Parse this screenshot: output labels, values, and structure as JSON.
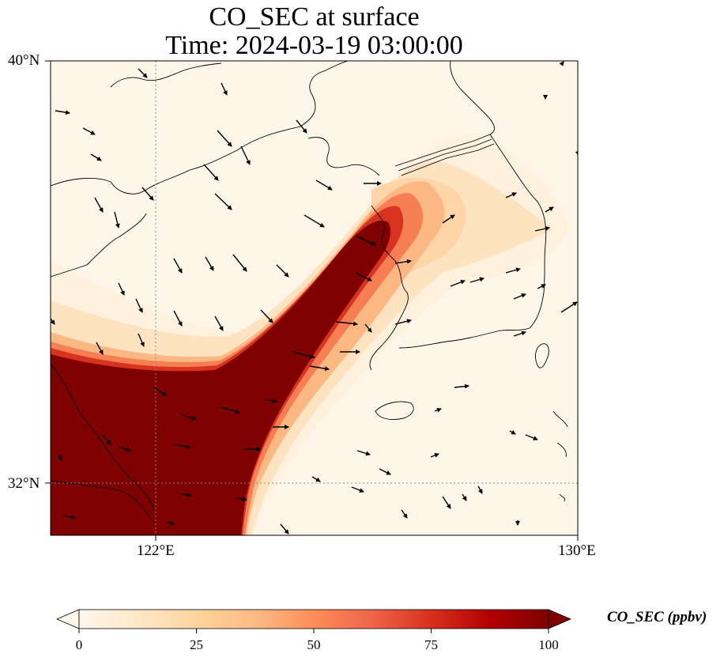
{
  "title": {
    "line1": "CO_SEC at surface",
    "line2": "Time: 2024-03-19 03:00:00"
  },
  "axes": {
    "lat_labels": [
      "40°N",
      "32°N"
    ],
    "lon_labels": [
      "122°E",
      "130°E"
    ]
  },
  "colorbar": {
    "label": "CO_SEC (ppbv)",
    "ticks": [
      "0",
      "25",
      "50",
      "75",
      "100"
    ],
    "range": [
      0,
      100
    ],
    "extend": "both",
    "colormap": "OrRd",
    "colors": [
      "#fff7ec",
      "#fee8c8",
      "#fdd49e",
      "#fdbb84",
      "#fc8d59",
      "#ef6548",
      "#d7301f",
      "#b30000",
      "#7f0000"
    ]
  },
  "map": {
    "extent": {
      "lon": [
        120,
        130
      ],
      "lat": [
        31,
        40
      ]
    },
    "gridlines": {
      "lon": [
        122
      ],
      "lat": [
        32
      ]
    },
    "coastline_color": "#000000",
    "overlay": "wind vectors (black arrows)"
  }
}
